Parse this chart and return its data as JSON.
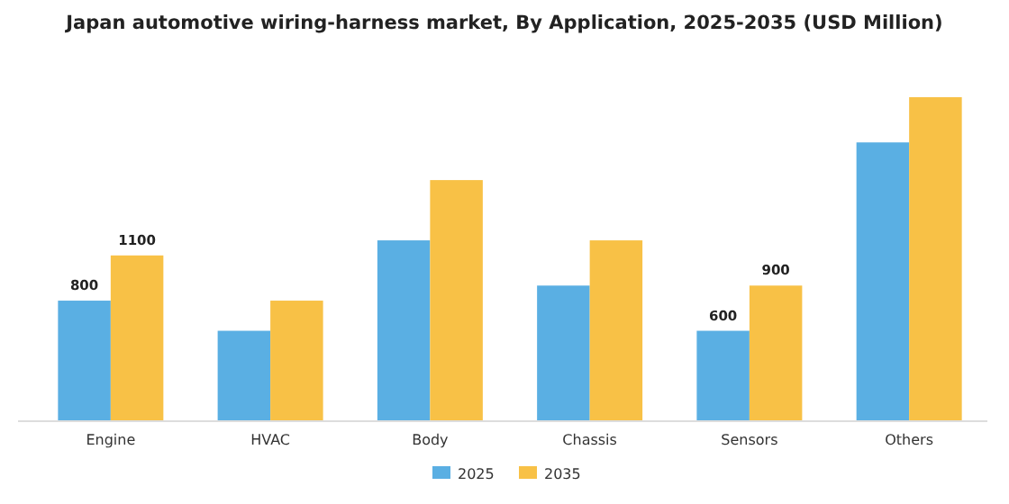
{
  "chart_data": {
    "type": "bar",
    "title": "Japan automotive wiring-harness market, By Application, 2025-2035 (USD Million)",
    "categories": [
      "Engine",
      "HVAC",
      "Body",
      "Chassis",
      "Sensors",
      "Others"
    ],
    "series": [
      {
        "name": "2025",
        "color": "#5aafe3",
        "values": [
          800,
          600,
          1200,
          900,
          600,
          1850
        ],
        "value_labels": [
          "800",
          null,
          null,
          null,
          "600",
          null
        ]
      },
      {
        "name": "2035",
        "color": "#f8c146",
        "values": [
          1100,
          800,
          1600,
          1200,
          900,
          2150
        ],
        "value_labels": [
          "1100",
          null,
          null,
          null,
          "900",
          null
        ]
      }
    ],
    "legend": "bottom",
    "grid": false
  }
}
